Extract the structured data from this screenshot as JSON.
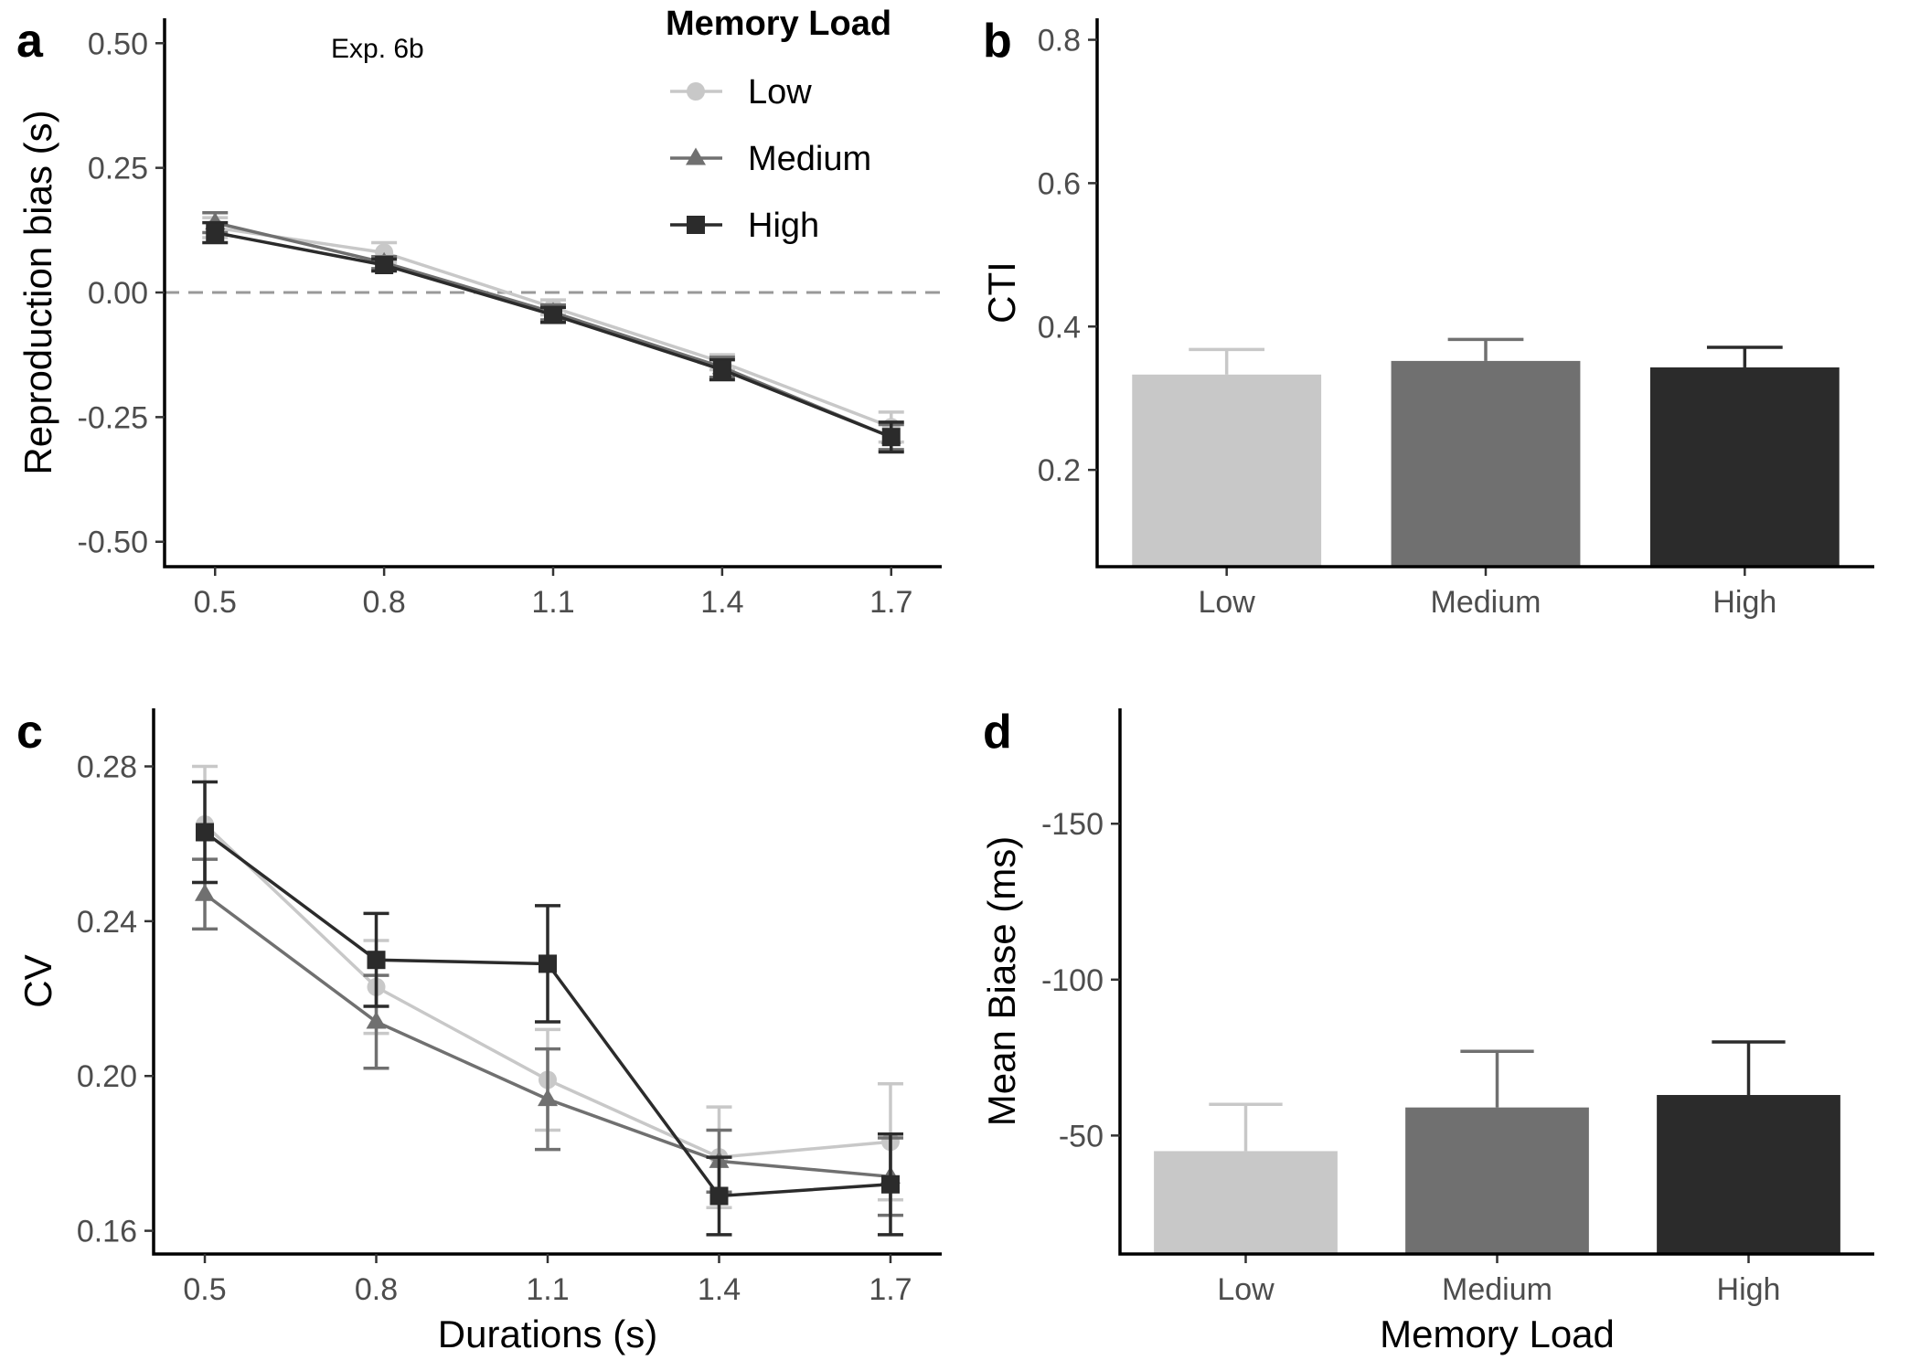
{
  "colors": {
    "low": "#c8c8c8",
    "medium": "#707070",
    "high": "#2b2b2b",
    "dashed": "#999999"
  },
  "legend": {
    "title": "Memory Load",
    "items": [
      {
        "label": "Low",
        "marker": "circle",
        "color": "#c8c8c8"
      },
      {
        "label": "Medium",
        "marker": "triangle",
        "color": "#707070"
      },
      {
        "label": "High",
        "marker": "square",
        "color": "#2b2b2b"
      }
    ]
  },
  "chart_data": [
    {
      "panel": "a",
      "type": "line",
      "annotation": "Exp. 6b",
      "xlabel": "",
      "ylabel": "Reproduction bias (s)",
      "x": [
        0.5,
        0.8,
        1.1,
        1.4,
        1.7
      ],
      "xticks": [
        "0.5",
        "0.8",
        "1.1",
        "1.4",
        "1.7"
      ],
      "yticks": [
        0.5,
        0.25,
        0.0,
        -0.25,
        -0.5
      ],
      "ytick_labels": [
        "0.50",
        "0.25",
        "0.00",
        "-0.25",
        "-0.50"
      ],
      "ylim": [
        -0.55,
        0.55
      ],
      "reference_line": 0,
      "series": [
        {
          "name": "Low",
          "values": [
            0.13,
            0.08,
            -0.03,
            -0.14,
            -0.27
          ],
          "errors": [
            0.02,
            0.02,
            0.015,
            0.015,
            0.03
          ]
        },
        {
          "name": "Medium",
          "values": [
            0.14,
            0.06,
            -0.04,
            -0.15,
            -0.29
          ],
          "errors": [
            0.02,
            0.012,
            0.015,
            0.02,
            0.025
          ]
        },
        {
          "name": "High",
          "values": [
            0.12,
            0.055,
            -0.045,
            -0.155,
            -0.29
          ],
          "errors": [
            0.02,
            0.012,
            0.015,
            0.02,
            0.03
          ]
        }
      ]
    },
    {
      "panel": "b",
      "type": "bar",
      "xlabel": "",
      "ylabel": "CTI",
      "categories": [
        "Low",
        "Medium",
        "High"
      ],
      "values": [
        0.333,
        0.352,
        0.343
      ],
      "errors": [
        0.035,
        0.03,
        0.028
      ],
      "yticks": [
        0.2,
        0.4,
        0.6,
        0.8
      ],
      "ytick_labels": [
        "0.2",
        "0.4",
        "0.6",
        "0.8"
      ],
      "ylim": [
        0.065,
        0.83
      ]
    },
    {
      "panel": "c",
      "type": "line",
      "xlabel": "Durations (s)",
      "ylabel": "CV",
      "x": [
        0.5,
        0.8,
        1.1,
        1.4,
        1.7
      ],
      "xticks": [
        "0.5",
        "0.8",
        "1.1",
        "1.4",
        "1.7"
      ],
      "yticks": [
        0.28,
        0.24,
        0.2,
        0.16
      ],
      "ytick_labels": [
        "0.28",
        "0.24",
        "0.20",
        "0.16"
      ],
      "ylim": [
        0.154,
        0.295
      ],
      "series": [
        {
          "name": "Low",
          "values": [
            0.265,
            0.223,
            0.199,
            0.179,
            0.183
          ],
          "errors": [
            0.015,
            0.012,
            0.013,
            0.013,
            0.015
          ]
        },
        {
          "name": "Medium",
          "values": [
            0.247,
            0.214,
            0.194,
            0.178,
            0.174
          ],
          "errors": [
            0.009,
            0.012,
            0.013,
            0.008,
            0.01
          ]
        },
        {
          "name": "High",
          "values": [
            0.263,
            0.23,
            0.229,
            0.169,
            0.172
          ],
          "errors": [
            0.013,
            0.012,
            0.015,
            0.01,
            0.013
          ]
        }
      ]
    },
    {
      "panel": "d",
      "type": "bar",
      "xlabel": "Memory Load",
      "ylabel": "Mean Biase (ms)",
      "categories": [
        "Low",
        "Medium",
        "High"
      ],
      "values": [
        -45,
        -59,
        -63
      ],
      "errors": [
        15,
        18,
        17
      ],
      "yticks": [
        -150,
        -100,
        -50
      ],
      "ytick_labels": [
        "-150",
        "-100",
        "-50"
      ],
      "y_inverted": true,
      "ylim": [
        -12,
        -187
      ]
    }
  ]
}
